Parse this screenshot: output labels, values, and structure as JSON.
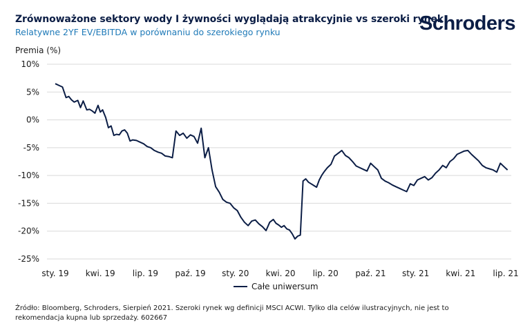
{
  "header": {
    "title": "Zrównoważone sektory wody I żywności wyglądają atrakcyjnie vs szeroki rynek",
    "subtitle": "Relatywne 2YF EV/EBITDA w porównaniu do szerokiego rynku",
    "logo_text": "Schroders"
  },
  "footer": {
    "source": "Źródło: Bloomberg, Schroders, Sierpień 2021. Szeroki rynek wg definicji MSCI ACWI. Tylko dla celów ilustracyjnych, nie jest to rekomendacja kupna lub sprzedaży. 602667"
  },
  "colors": {
    "series": "#0b1d45",
    "grid": "#d9d9d9",
    "accent": "#1f7ab8"
  },
  "chart_data": {
    "type": "line",
    "title": "Zrównoważone sektory wody I żywności wyglądają atrakcyjnie vs szeroki rynek",
    "ylabel": "Premia (%)",
    "xlabel": "",
    "ylim": [
      -25,
      10
    ],
    "yticks": [
      "10%",
      "5%",
      "0%",
      "-5%",
      "-10%",
      "-15%",
      "-20%",
      "-25%"
    ],
    "ytick_values": [
      10,
      5,
      0,
      -5,
      -10,
      -15,
      -20,
      -25
    ],
    "xticks": [
      "sty. 19",
      "kwi. 19",
      "lip. 19",
      "paź. 19",
      "sty. 20",
      "kwi. 20",
      "lip. 20",
      "paź. 21",
      "sty. 21",
      "kwi. 21",
      "lip. 21"
    ],
    "xtick_positions": [
      0,
      1,
      2,
      3,
      4,
      5,
      6,
      7,
      8,
      9,
      10
    ],
    "grid": true,
    "legend": {
      "position": "bottom-center",
      "entries": [
        "Całe uniwersum"
      ]
    },
    "series": [
      {
        "name": "Całe uniwersum",
        "x": [
          0,
          0.08,
          0.16,
          0.24,
          0.3,
          0.36,
          0.42,
          0.5,
          0.56,
          0.62,
          0.7,
          0.76,
          0.82,
          0.88,
          0.95,
          1.0,
          1.05,
          1.12,
          1.18,
          1.24,
          1.3,
          1.36,
          1.42,
          1.48,
          1.54,
          1.6,
          1.66,
          1.72,
          1.8,
          1.88,
          1.96,
          2.04,
          2.12,
          2.2,
          2.28,
          2.36,
          2.44,
          2.52,
          2.6,
          2.68,
          2.76,
          2.84,
          2.92,
          3.0,
          3.08,
          3.16,
          3.24,
          3.32,
          3.4,
          3.48,
          3.56,
          3.64,
          3.72,
          3.8,
          3.88,
          3.96,
          4.04,
          4.12,
          4.2,
          4.28,
          4.36,
          4.44,
          4.52,
          4.6,
          4.68,
          4.76,
          4.84,
          4.9,
          4.96,
          5.02,
          5.08,
          5.14,
          5.2,
          5.26,
          5.32,
          5.38,
          5.44,
          5.5,
          5.56,
          5.62,
          5.68,
          5.74,
          5.8,
          5.86,
          5.92,
          5.98,
          6.04,
          6.12,
          6.2,
          6.28,
          6.36,
          6.44,
          6.52,
          6.6,
          6.68,
          6.76,
          6.84,
          6.92,
          7.0,
          7.08,
          7.16,
          7.24,
          7.32,
          7.4,
          7.48,
          7.56,
          7.64,
          7.72,
          7.8,
          7.88,
          7.96,
          8.04,
          8.12,
          8.2,
          8.28,
          8.36,
          8.44,
          8.52,
          8.6,
          8.68,
          8.76,
          8.84,
          8.92,
          9.0,
          9.08,
          9.16,
          9.24,
          9.32,
          9.4,
          9.48,
          9.56,
          9.64,
          9.72,
          9.8,
          9.88,
          9.96,
          10.04
        ],
        "values": [
          6.5,
          6.2,
          5.9,
          4.0,
          4.2,
          3.6,
          3.2,
          3.5,
          2.2,
          3.4,
          1.8,
          1.9,
          1.6,
          1.2,
          2.6,
          1.4,
          1.8,
          0.4,
          -1.4,
          -1.1,
          -2.8,
          -2.6,
          -2.7,
          -2.0,
          -1.8,
          -2.4,
          -3.8,
          -3.6,
          -3.7,
          -4.0,
          -4.3,
          -4.8,
          -5.0,
          -5.5,
          -5.8,
          -6.0,
          -6.5,
          -6.6,
          -6.8,
          -2.0,
          -2.8,
          -2.4,
          -3.3,
          -2.7,
          -3.0,
          -4.2,
          -1.5,
          -6.8,
          -5.0,
          -9.0,
          -12.0,
          -13.0,
          -14.3,
          -14.8,
          -15.0,
          -15.8,
          -16.3,
          -17.5,
          -18.4,
          -19.0,
          -18.2,
          -18.0,
          -18.7,
          -19.2,
          -19.9,
          -18.4,
          -17.9,
          -18.6,
          -18.9,
          -19.3,
          -19.0,
          -19.6,
          -19.8,
          -20.5,
          -21.4,
          -20.9,
          -20.7,
          -11.0,
          -10.6,
          -11.2,
          -11.5,
          -11.8,
          -12.1,
          -10.8,
          -9.9,
          -9.2,
          -8.6,
          -8.0,
          -6.5,
          -6.0,
          -5.5,
          -6.4,
          -6.8,
          -7.5,
          -8.3,
          -8.6,
          -8.9,
          -9.2,
          -7.8,
          -8.4,
          -9.0,
          -10.5,
          -11.0,
          -11.3,
          -11.7,
          -12.0,
          -12.3,
          -12.6,
          -12.9,
          -11.5,
          -11.8,
          -10.8,
          -10.5,
          -10.2,
          -10.8,
          -10.4,
          -9.6,
          -9.0,
          -8.2,
          -8.6,
          -7.5,
          -7.0,
          -6.2,
          -5.9,
          -5.6,
          -5.5,
          -6.2,
          -6.8,
          -7.4,
          -8.2,
          -8.6,
          -8.8,
          -9.0,
          -9.4,
          -7.8,
          -8.4,
          -9.0
        ]
      }
    ]
  }
}
